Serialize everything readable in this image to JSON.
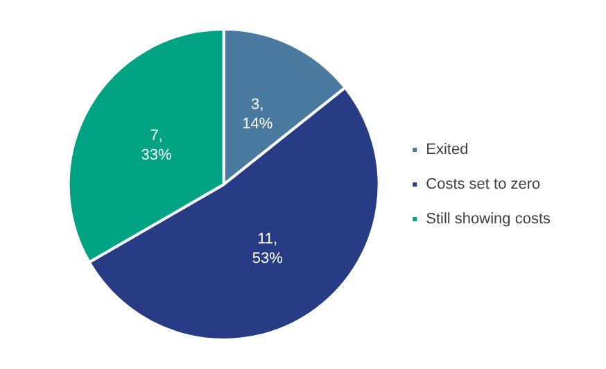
{
  "chart_data": {
    "type": "pie",
    "categories": [
      "Exited",
      "Costs set to zero",
      "Still showing costs"
    ],
    "values": [
      3,
      11,
      7
    ],
    "colors": [
      "#4a7aa0",
      "#283b85",
      "#00a383"
    ],
    "value_labels": [
      "3,\n14%",
      "11,\n53%",
      "7,\n33%"
    ],
    "legend": "right"
  }
}
